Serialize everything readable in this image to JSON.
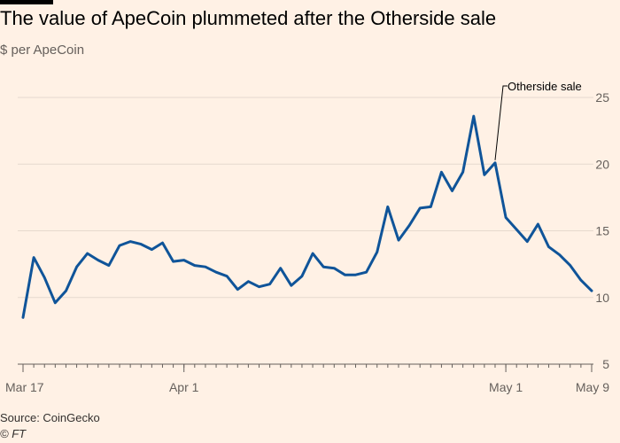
{
  "header": {
    "title": "The value of ApeCoin plummeted after the Otherside sale",
    "subtitle": "$ per ApeCoin"
  },
  "footer": {
    "source": "Source: CoinGecko",
    "credit": "© FT"
  },
  "chart_data": {
    "type": "line",
    "title": "The value of ApeCoin plummeted after the Otherside sale",
    "subtitle": "$ per ApeCoin",
    "x_ticks": [
      "Mar 17",
      "Apr 1",
      "May 1",
      "May 9"
    ],
    "x_tick_dates": [
      "2022-03-17",
      "2022-04-01",
      "2022-05-01",
      "2022-05-09"
    ],
    "y_ticks": [
      5,
      10,
      15,
      20,
      25
    ],
    "ylim": [
      5,
      26
    ],
    "xlim": [
      "2022-03-17",
      "2022-05-09"
    ],
    "grid": true,
    "colors": {
      "line": "#0f5499",
      "grid": "#e6d9ce",
      "axis": "#66605c",
      "background": "#fff1e5"
    },
    "annotation": {
      "text": "Otherside sale",
      "date": "2022-04-30",
      "value": 20.1
    },
    "series": [
      {
        "x": [
          "2022-03-17",
          "2022-03-18",
          "2022-03-19",
          "2022-03-20",
          "2022-03-21",
          "2022-03-22",
          "2022-03-23",
          "2022-03-24",
          "2022-03-25",
          "2022-03-26",
          "2022-03-27",
          "2022-03-28",
          "2022-03-29",
          "2022-03-30",
          "2022-03-31",
          "2022-04-01",
          "2022-04-02",
          "2022-04-03",
          "2022-04-04",
          "2022-04-05",
          "2022-04-06",
          "2022-04-07",
          "2022-04-08",
          "2022-04-09",
          "2022-04-10",
          "2022-04-11",
          "2022-04-12",
          "2022-04-13",
          "2022-04-14",
          "2022-04-15",
          "2022-04-16",
          "2022-04-17",
          "2022-04-18",
          "2022-04-19",
          "2022-04-20",
          "2022-04-21",
          "2022-04-22",
          "2022-04-23",
          "2022-04-24",
          "2022-04-25",
          "2022-04-26",
          "2022-04-27",
          "2022-04-28",
          "2022-04-29",
          "2022-04-30",
          "2022-05-01",
          "2022-05-02",
          "2022-05-03",
          "2022-05-04",
          "2022-05-05",
          "2022-05-06",
          "2022-05-07",
          "2022-05-08",
          "2022-05-09"
        ],
        "values": [
          8.5,
          13.0,
          11.5,
          9.6,
          10.5,
          12.3,
          13.3,
          12.8,
          12.4,
          13.9,
          14.2,
          14.0,
          13.6,
          14.1,
          12.7,
          12.8,
          12.4,
          12.3,
          11.9,
          11.6,
          10.6,
          11.2,
          10.8,
          11.0,
          12.2,
          10.9,
          11.6,
          13.3,
          12.3,
          12.2,
          11.7,
          11.7,
          11.9,
          13.4,
          16.8,
          14.3,
          15.4,
          16.7,
          16.8,
          19.4,
          18.0,
          19.4,
          23.6,
          19.2,
          20.1,
          16.0,
          15.1,
          14.2,
          15.5,
          13.8,
          13.2,
          12.4,
          11.3,
          10.5
        ]
      }
    ]
  }
}
